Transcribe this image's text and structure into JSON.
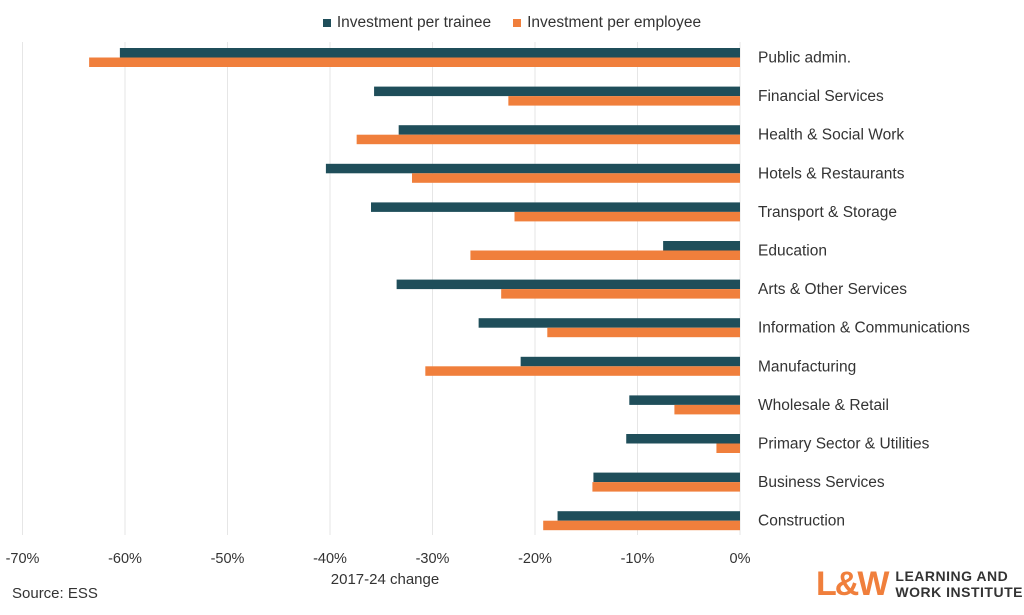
{
  "legend": {
    "trainee_label": "Investment per trainee",
    "employee_label": "Investment per employee"
  },
  "colors": {
    "trainee": "#1F4E5A",
    "employee": "#F07F3C",
    "grid": "#e6e6e6"
  },
  "source": "Source: ESS",
  "logo": {
    "mark": "L&W",
    "line1": "LEARNING AND",
    "line2": "WORK INSTITUTE"
  },
  "chart_data": {
    "type": "bar",
    "orientation": "horizontal",
    "xlabel": "2017-24 change",
    "xlim": [
      -70,
      0
    ],
    "xticks": [
      -70,
      -60,
      -50,
      -40,
      -30,
      -20,
      -10,
      0
    ],
    "xtick_labels": [
      "-70%",
      "-60%",
      "-50%",
      "-40%",
      "-30%",
      "-20%",
      "-10%",
      "0%"
    ],
    "grid": "vertical",
    "legend_position": "top",
    "categories": [
      "Public admin.",
      "Financial Services",
      "Health & Social Work",
      "Hotels & Restaurants",
      "Transport & Storage",
      "Education",
      "Arts & Other Services",
      "Information & Communications",
      "Manufacturing",
      "Wholesale & Retail",
      "Primary Sector & Utilities",
      "Business Services",
      "Construction"
    ],
    "series": [
      {
        "name": "Investment per trainee",
        "values": [
          -60.5,
          -35.7,
          -33.3,
          -40.4,
          -36.0,
          -7.5,
          -33.5,
          -25.5,
          -21.4,
          -10.8,
          -11.1,
          -14.3,
          -17.8
        ]
      },
      {
        "name": "Investment per employee",
        "values": [
          -63.5,
          -22.6,
          -37.4,
          -32.0,
          -22.0,
          -26.3,
          -23.3,
          -18.8,
          -30.7,
          -6.4,
          -2.3,
          -14.4,
          -19.2
        ]
      }
    ]
  }
}
